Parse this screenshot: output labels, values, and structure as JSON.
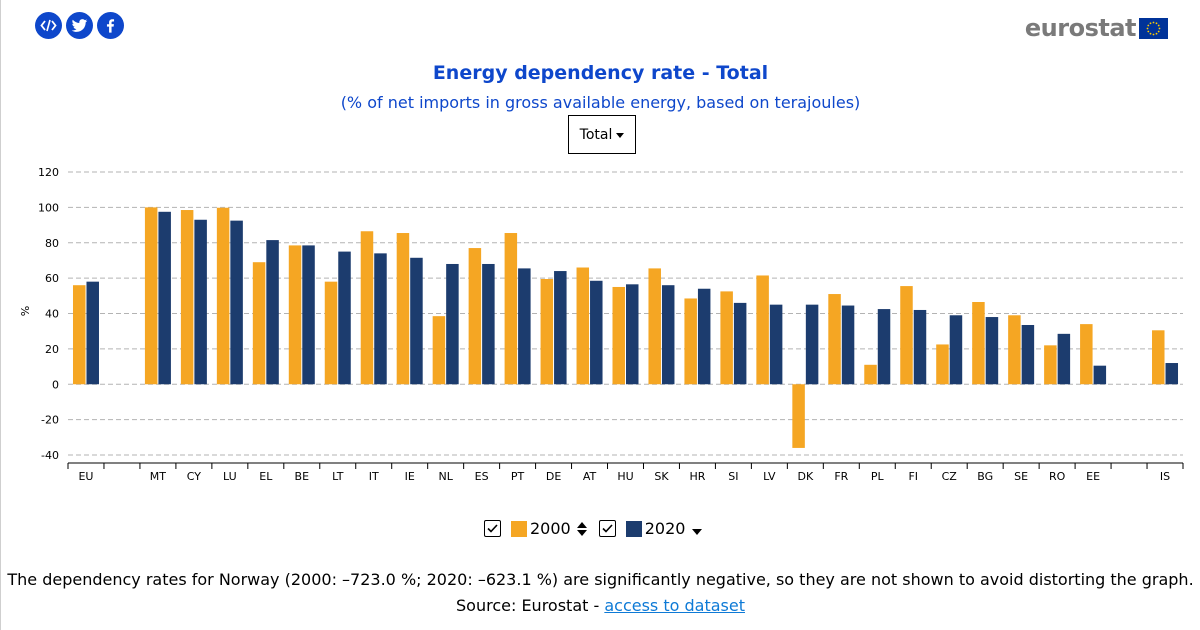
{
  "share": {
    "icons": [
      "embed-icon",
      "twitter-icon",
      "facebook-icon"
    ]
  },
  "logo": {
    "text": "eurostat"
  },
  "header": {
    "title": "Energy dependency rate - Total",
    "subtitle": "(% of net imports in gross available energy, based on terajoules)"
  },
  "dropdown": {
    "selected": "Total"
  },
  "legend": {
    "items": [
      {
        "label": "2000",
        "color": "#f5a623",
        "checked": true
      },
      {
        "label": "2020",
        "color": "#1c3c6e",
        "checked": true
      }
    ]
  },
  "footer": {
    "note": "The dependency rates for Norway (2000: –723.0 %; 2020: –623.1 %) are significantly negative, so they are not shown to avoid distorting the graph.",
    "source_prefix": "Source: Eurostat - ",
    "source_link": "access to dataset"
  },
  "colors": {
    "accent": "#0e47cb",
    "series_2000": "#f5a623",
    "series_2020": "#1c3c6e"
  },
  "chart_data": {
    "type": "bar",
    "ylabel": "%",
    "ylim": [
      -40,
      120
    ],
    "yticks": [
      -40,
      -20,
      0,
      20,
      40,
      60,
      80,
      100,
      120
    ],
    "grid": true,
    "categories": [
      "EU",
      "",
      "MT",
      "CY",
      "LU",
      "EL",
      "BE",
      "LT",
      "IT",
      "IE",
      "NL",
      "ES",
      "PT",
      "DE",
      "AT",
      "HU",
      "SK",
      "HR",
      "SI",
      "LV",
      "DK",
      "FR",
      "PL",
      "FI",
      "CZ",
      "BG",
      "SE",
      "RO",
      "EE",
      "",
      "IS"
    ],
    "series": [
      {
        "name": "2000",
        "values": [
          56,
          null,
          100,
          98.5,
          99.8,
          69,
          78.5,
          58,
          86.5,
          85.5,
          38.5,
          77,
          85.5,
          59.5,
          66,
          55,
          65.5,
          48.5,
          52.5,
          61.5,
          -36,
          51,
          11,
          55.5,
          22.5,
          46.5,
          39,
          22,
          34,
          null,
          30.5
        ]
      },
      {
        "name": "2020",
        "values": [
          58,
          null,
          97.5,
          93,
          92.5,
          81.5,
          78.5,
          75,
          74,
          71.5,
          68,
          68,
          65.5,
          64,
          58.5,
          56.5,
          56,
          54,
          46,
          45,
          45,
          44.5,
          42.5,
          42,
          39,
          38,
          33.5,
          28.5,
          10.5,
          null,
          12
        ]
      }
    ]
  }
}
